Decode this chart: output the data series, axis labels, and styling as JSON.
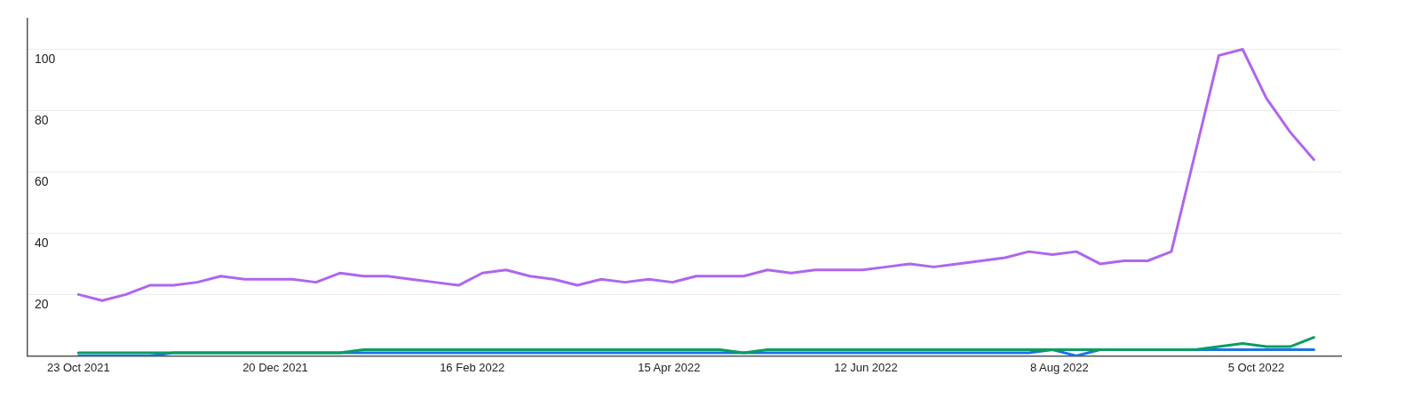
{
  "chart_data": {
    "type": "line",
    "x": [
      "2021-10-23",
      "2021-10-30",
      "2021-11-06",
      "2021-11-13",
      "2021-11-20",
      "2021-11-27",
      "2021-12-04",
      "2021-12-11",
      "2021-12-18",
      "2021-12-25",
      "2022-01-01",
      "2022-01-08",
      "2022-01-15",
      "2022-01-22",
      "2022-01-29",
      "2022-02-05",
      "2022-02-12",
      "2022-02-19",
      "2022-02-26",
      "2022-03-05",
      "2022-03-12",
      "2022-03-19",
      "2022-03-26",
      "2022-04-02",
      "2022-04-09",
      "2022-04-16",
      "2022-04-23",
      "2022-04-30",
      "2022-05-07",
      "2022-05-14",
      "2022-05-21",
      "2022-05-28",
      "2022-06-04",
      "2022-06-11",
      "2022-06-18",
      "2022-06-25",
      "2022-07-02",
      "2022-07-09",
      "2022-07-16",
      "2022-07-23",
      "2022-07-30",
      "2022-08-06",
      "2022-08-13",
      "2022-08-20",
      "2022-08-27",
      "2022-09-03",
      "2022-09-10",
      "2022-09-17",
      "2022-09-24",
      "2022-10-01",
      "2022-10-08",
      "2022-10-15",
      "2022-10-22"
    ],
    "series": [
      {
        "color": "#af66ee",
        "values": [
          20,
          18,
          20,
          23,
          23,
          24,
          26,
          25,
          25,
          25,
          24,
          27,
          26,
          26,
          25,
          24,
          23,
          27,
          28,
          26,
          25,
          23,
          25,
          24,
          25,
          24,
          26,
          26,
          26,
          28,
          27,
          28,
          28,
          28,
          29,
          30,
          29,
          30,
          31,
          32,
          34,
          33,
          34,
          30,
          31,
          31,
          34,
          66,
          98,
          100,
          84,
          73,
          64
        ]
      },
      {
        "color": "#1a73e8",
        "values": [
          0,
          0,
          0,
          0,
          1,
          1,
          1,
          1,
          1,
          1,
          1,
          1,
          1,
          1,
          1,
          1,
          1,
          1,
          1,
          1,
          1,
          1,
          1,
          1,
          1,
          1,
          1,
          1,
          1,
          1,
          1,
          1,
          1,
          1,
          1,
          1,
          1,
          1,
          1,
          1,
          1,
          2,
          0,
          2,
          null,
          null,
          null,
          2,
          2,
          2,
          2,
          2,
          2
        ]
      },
      {
        "color": "#0a9d61",
        "values": [
          1,
          1,
          1,
          1,
          1,
          1,
          1,
          1,
          1,
          1,
          1,
          1,
          2,
          2,
          2,
          2,
          2,
          2,
          2,
          2,
          2,
          2,
          2,
          2,
          2,
          2,
          2,
          2,
          1,
          2,
          2,
          2,
          2,
          2,
          2,
          2,
          2,
          2,
          2,
          2,
          2,
          2,
          2,
          2,
          2,
          2,
          2,
          2,
          3,
          4,
          3,
          3,
          6
        ]
      }
    ],
    "xlim": [
      "2021-10-08",
      "2022-10-30"
    ],
    "xticks": [
      {
        "value": "2021-10-23",
        "label": "23 Oct 2021"
      },
      {
        "value": "2021-12-20",
        "label": "20 Dec 2021"
      },
      {
        "value": "2022-02-16",
        "label": "16 Feb 2022"
      },
      {
        "value": "2022-04-15",
        "label": "15 Apr 2022"
      },
      {
        "value": "2022-06-12",
        "label": "12 Jun 2022"
      },
      {
        "value": "2022-08-08",
        "label": "8 Aug 2022"
      },
      {
        "value": "2022-10-05",
        "label": "5 Oct 2022"
      }
    ],
    "ylim": [
      0,
      110
    ],
    "yticks": [
      20,
      40,
      60,
      80,
      100
    ],
    "grid": "y",
    "marker": "none",
    "line_style": "solid",
    "legend": false
  }
}
